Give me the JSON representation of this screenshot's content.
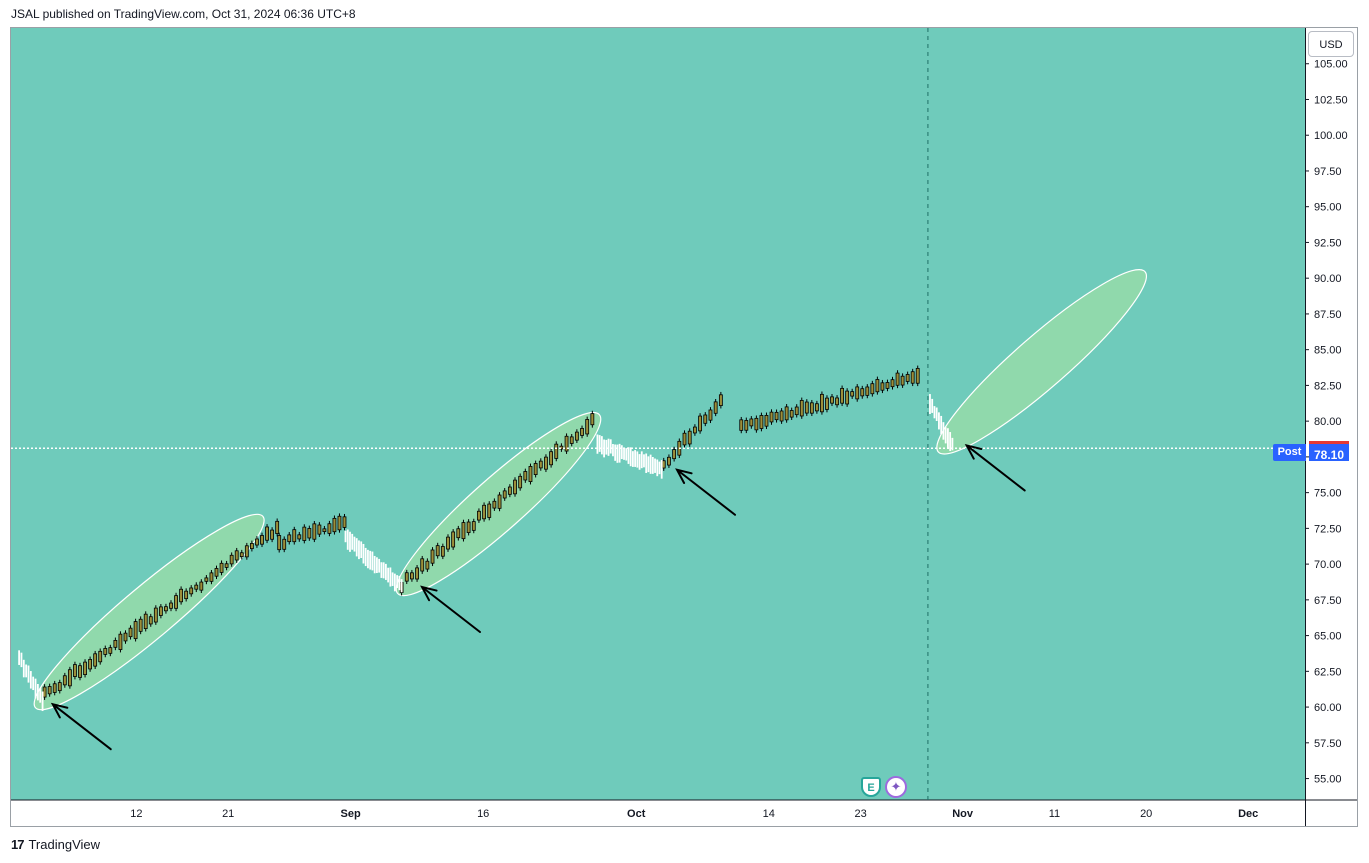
{
  "header": {
    "published": "JSAL published on TradingView.com, Oct 31, 2024 06:36 UTC+8"
  },
  "toolbar": {
    "currency": "USD"
  },
  "footer": {
    "logo_icon": "tradingview-logo-icon",
    "brand": "TradingView"
  },
  "last_price": {
    "label": "Post",
    "value": "78.10"
  },
  "events": {
    "earnings": "E",
    "dividend": "✦"
  },
  "colors": {
    "background": "#6fcbbb",
    "ellipse_fill": "#a6e3a1",
    "up_candle": "#9c8f3a",
    "down_candle": "#ffffff",
    "wick": "#000000",
    "badge": "#2962ff"
  },
  "chart_data": {
    "type": "candlestick",
    "title": "",
    "xlabel": "",
    "ylabel": "",
    "ylim": [
      53.5,
      107.5
    ],
    "y_ticks": [
      "105.00",
      "102.50",
      "100.00",
      "97.50",
      "95.00",
      "92.50",
      "90.00",
      "87.50",
      "85.00",
      "82.50",
      "80.00",
      "77.50",
      "75.00",
      "72.50",
      "70.00",
      "67.50",
      "65.00",
      "62.50",
      "60.00",
      "57.50",
      "55.00"
    ],
    "x_ticks": [
      {
        "label": "12",
        "day": 12
      },
      {
        "label": "21",
        "day": 21
      },
      {
        "label": "Sep",
        "day": 33
      },
      {
        "label": "16",
        "day": 46
      },
      {
        "label": "Oct",
        "day": 61
      },
      {
        "label": "14",
        "day": 74
      },
      {
        "label": "23",
        "day": 83
      },
      {
        "label": "Nov",
        "day": 93
      },
      {
        "label": "11",
        "day": 102
      },
      {
        "label": "20",
        "day": 111
      },
      {
        "label": "Dec",
        "day": 121
      }
    ],
    "last_price": 78.1,
    "crosshair_day": 89.6,
    "rise_segments": [
      {
        "start_day": 3.0,
        "end_day": 25.8,
        "start": 60.8,
        "end": 72.5
      },
      {
        "start_day": 26.0,
        "end_day": 32.4,
        "start": 71.5,
        "end": 72.8
      },
      {
        "start_day": 38.0,
        "end_day": 56.7,
        "start": 68.6,
        "end": 80.0
      },
      {
        "start_day": 63.7,
        "end_day": 69.3,
        "start": 76.9,
        "end": 81.5
      },
      {
        "start_day": 71.3,
        "end_day": 88.6,
        "start": 79.6,
        "end": 83.2
      }
    ],
    "fall_segments": [
      {
        "start_day": 0.5,
        "end_day": 2.8,
        "start": 63.5,
        "end": 60.6
      },
      {
        "start_day": 32.5,
        "end_day": 38.0,
        "start": 72.0,
        "end": 68.5
      },
      {
        "start_day": 57.2,
        "end_day": 63.5,
        "start": 78.5,
        "end": 76.8
      },
      {
        "start_day": 89.8,
        "end_day": 92.0,
        "start": 81.3,
        "end": 78.4
      }
    ],
    "highlights": [
      {
        "start_day": 3.0,
        "end_day": 23.5,
        "low": 60.5,
        "high": 72.8
      },
      {
        "start_day": 38.5,
        "end_day": 56.5,
        "low": 68.5,
        "high": 79.9
      },
      {
        "start_day": 91.5,
        "end_day": 110.0,
        "low": 78.4,
        "high": 89.9
      }
    ],
    "arrows": [
      {
        "tip_day": 3.8,
        "tip_price": 60.2
      },
      {
        "tip_day": 40.0,
        "tip_price": 68.4
      },
      {
        "tip_day": 65.0,
        "tip_price": 76.6
      },
      {
        "tip_day": 93.4,
        "tip_price": 78.3
      }
    ]
  }
}
